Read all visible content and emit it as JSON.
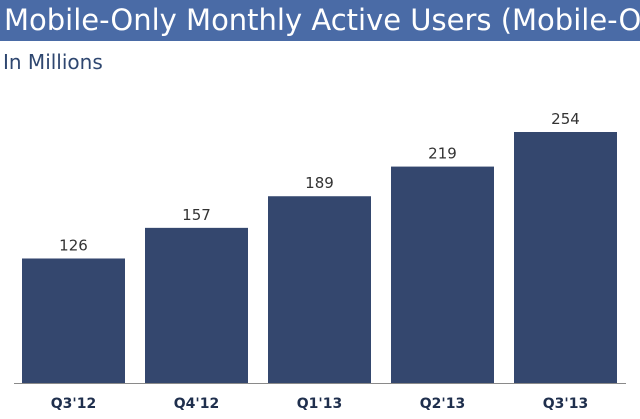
{
  "header": {
    "title": "Mobile-Only Monthly Active Users (Mobile-Only MAUs)",
    "subtitle": "In Millions"
  },
  "colors": {
    "title_bar": "#4a6ba6",
    "bar": "#34476e",
    "axis": "#8a8a8a"
  },
  "chart_data": {
    "type": "bar",
    "title": "Mobile-Only Monthly Active Users (Mobile-Only MAUs)",
    "subtitle": "In Millions",
    "categories": [
      "Q3'12",
      "Q4'12",
      "Q1'13",
      "Q2'13",
      "Q3'13"
    ],
    "values": [
      126,
      157,
      189,
      219,
      254
    ],
    "data_labels": [
      "126",
      "157",
      "189",
      "219",
      "254"
    ],
    "xlabel": "",
    "ylabel": "",
    "ylim": [
      0,
      254
    ],
    "grid": false,
    "legend": "none"
  }
}
